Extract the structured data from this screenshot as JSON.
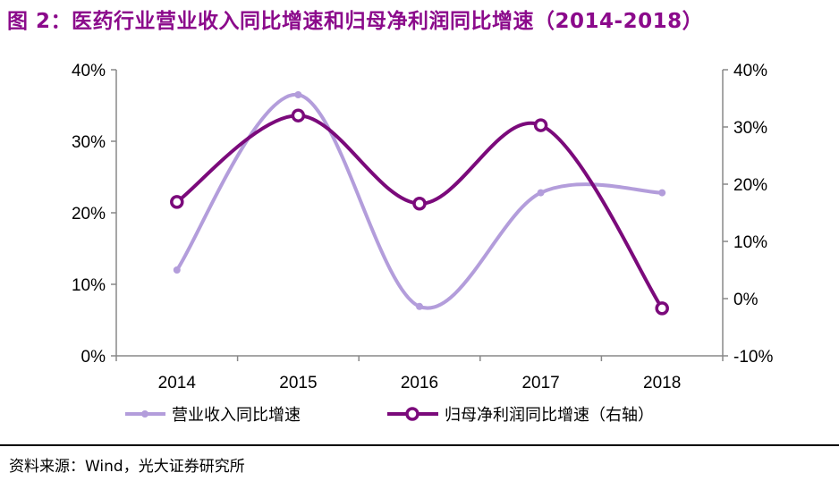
{
  "title": "图 2：医药行业营业收入同比增速和归母净利润同比增速（2014-2018）",
  "source": "资料来源：Wind，光大证券研究所",
  "chart_data": {
    "type": "line",
    "categories": [
      "2014",
      "2015",
      "2016",
      "2017",
      "2018"
    ],
    "y_left": {
      "ticks": [
        "0%",
        "10%",
        "20%",
        "30%",
        "40%"
      ],
      "range": [
        0,
        40
      ]
    },
    "y_right": {
      "ticks": [
        "-10%",
        "0%",
        "10%",
        "20%",
        "30%",
        "40%"
      ],
      "range": [
        -10,
        40
      ]
    },
    "smooth": true,
    "grid": false,
    "legend_position": "bottom",
    "series": [
      {
        "name": "营业收入同比增速",
        "axis": "left",
        "color": "#b39ddb",
        "values": [
          12.0,
          36.5,
          6.9,
          22.8,
          22.8
        ]
      },
      {
        "name": "归母净利润同比增速（右轴）",
        "axis": "right",
        "color": "#7b0a7b",
        "values": [
          16.9,
          32.0,
          16.6,
          30.3,
          -1.7
        ]
      }
    ]
  }
}
